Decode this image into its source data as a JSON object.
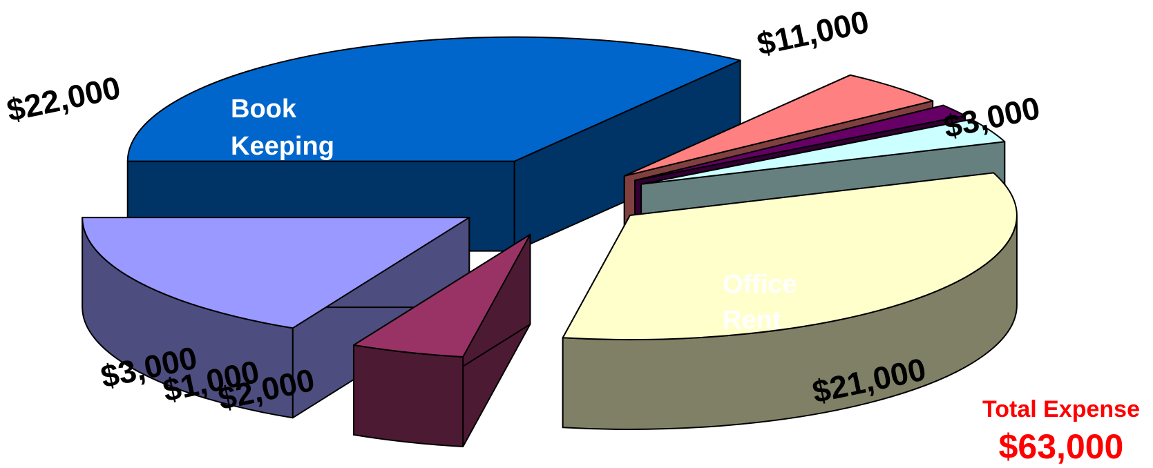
{
  "chart_data": {
    "type": "pie",
    "style": "3d-exploded",
    "slices": [
      {
        "label": "Book Keeping",
        "value": 22000,
        "value_label": "$22,000",
        "top_color": "#0066cc",
        "side_color": "#003366"
      },
      {
        "label": "",
        "value": 3000,
        "value_label": "$3,000",
        "top_color": "#ff8080",
        "side_color": "#804040"
      },
      {
        "label": "",
        "value": 1000,
        "value_label": "$1,000",
        "top_color": "#660066",
        "side_color": "#330033"
      },
      {
        "label": "",
        "value": 2000,
        "value_label": "$2,000",
        "top_color": "#ccffff",
        "side_color": "#668080"
      },
      {
        "label": "Office Rent",
        "value": 21000,
        "value_label": "$21,000",
        "top_color": "#ffffcc",
        "side_color": "#808066"
      },
      {
        "label": "",
        "value": 3000,
        "value_label": "$3,000",
        "top_color": "#993366",
        "side_color": "#4d1a33"
      },
      {
        "label": "",
        "value": 11000,
        "value_label": "$11,000",
        "top_color": "#9999ff",
        "side_color": "#4d4d80"
      }
    ],
    "slice_labels": {
      "book_keeping_line1": "Book",
      "book_keeping_line2": "Keeping",
      "office_rent_line1": "Office",
      "office_rent_line2": "Rent"
    },
    "total": {
      "caption": "Total Expense",
      "value": 63000,
      "value_label": "$63,000",
      "color": "#ff0000"
    }
  }
}
